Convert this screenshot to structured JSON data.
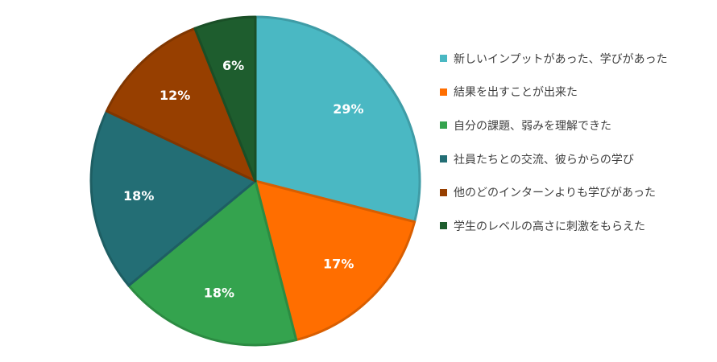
{
  "chart_data": {
    "type": "pie",
    "title": "",
    "legend_position": "right",
    "start_angle": "12 o'clock, clockwise",
    "slices": [
      {
        "label": "新しいインプットがあった、学びがあった",
        "value": 29,
        "value_label": "29%",
        "color": "#4ab8c3"
      },
      {
        "label": "結果を出すことが出来た",
        "value": 17,
        "value_label": "17%",
        "color": "#ff6e00"
      },
      {
        "label": "自分の課題、弱みを理解できた",
        "value": 18,
        "value_label": "18%",
        "color": "#34a34e"
      },
      {
        "label": "社員たちとの交流、彼らからの学び",
        "value": 18,
        "value_label": "18%",
        "color": "#236e75"
      },
      {
        "label": "他のどのインターンよりも学びがあった",
        "value": 12,
        "value_label": "12%",
        "color": "#973f00"
      },
      {
        "label": "学生のレベルの高さに刺激をもらえた",
        "value": 6,
        "value_label": "6%",
        "color": "#1e5d2e"
      }
    ]
  }
}
